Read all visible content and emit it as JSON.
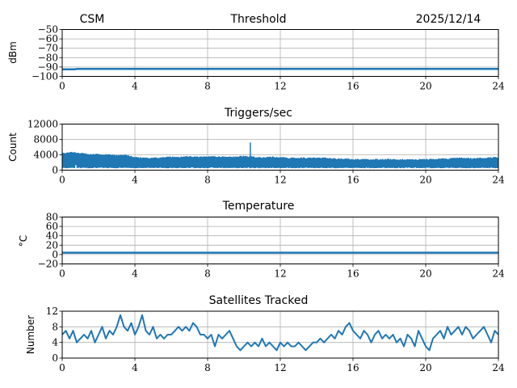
{
  "header": {
    "left": "CSM",
    "center": "Threshold",
    "right": "2025/12/14"
  },
  "series_color": "#1f77b4",
  "grid_color": "#b0b0b0",
  "chart_data": [
    {
      "type": "line",
      "title": "Threshold",
      "ylabel": "dBm",
      "xlim": [
        0,
        24
      ],
      "ylim": [
        -100,
        -50
      ],
      "xticks": [
        0,
        4,
        8,
        12,
        16,
        20,
        24
      ],
      "xtick_labels": [
        "0",
        "4",
        "8",
        "12",
        "16",
        "20",
        "24"
      ],
      "yticks": [
        -100,
        -90,
        -80,
        -70,
        -60,
        -50
      ],
      "ytick_labels": [
        "−100",
        "−90",
        "−80",
        "−70",
        "−60",
        "−50"
      ],
      "grid": true,
      "x": [
        0,
        0.7,
        0.8,
        24
      ],
      "y": [
        -92.5,
        -92.5,
        -92,
        -92
      ]
    },
    {
      "type": "area",
      "title": "Triggers/sec",
      "ylabel": "Count",
      "xlim": [
        0,
        24
      ],
      "ylim": [
        0,
        12000
      ],
      "xticks": [
        0,
        4,
        8,
        12,
        16,
        20,
        24
      ],
      "xtick_labels": [
        "0",
        "4",
        "8",
        "12",
        "16",
        "20",
        "24"
      ],
      "yticks": [
        0,
        4000,
        8000,
        12000
      ],
      "ytick_labels": [
        "0",
        "4000",
        "8000",
        "12000"
      ],
      "grid": true,
      "x_step": 0.5,
      "upper": [
        4500,
        4800,
        4600,
        4200,
        4300,
        4200,
        4000,
        4100,
        3500,
        3300,
        3300,
        3400,
        3600,
        3600,
        3700,
        3600,
        3700,
        3700,
        3600,
        3600,
        3800,
        3600,
        3400,
        3600,
        3500,
        3300,
        3400,
        3300,
        3300,
        3300,
        3100,
        3100,
        3000,
        3000,
        2900,
        3000,
        3000,
        2900,
        2900,
        2900,
        3000,
        3000,
        3100,
        3200,
        3300,
        3200,
        3300,
        3400,
        3500
      ],
      "lower": 500,
      "spikes": [
        {
          "x": 10.35,
          "y": 7200
        },
        {
          "x": 0.75,
          "y": 1300
        }
      ]
    },
    {
      "type": "line",
      "title": "Temperature",
      "ylabel": "°C",
      "xlim": [
        0,
        24
      ],
      "ylim": [
        -20,
        80
      ],
      "xticks": [
        0,
        4,
        8,
        12,
        16,
        20,
        24
      ],
      "xtick_labels": [
        "0",
        "4",
        "8",
        "12",
        "16",
        "20",
        "24"
      ],
      "yticks": [
        -20,
        0,
        20,
        40,
        60,
        80
      ],
      "ytick_labels": [
        "−20",
        "0",
        "20",
        "40",
        "60",
        "80"
      ],
      "grid": true,
      "x": [
        0,
        24
      ],
      "y": [
        4,
        4
      ]
    },
    {
      "type": "line",
      "title": "Satellites Tracked",
      "ylabel": "Number",
      "xlim": [
        0,
        24
      ],
      "ylim": [
        0,
        12
      ],
      "xticks": [
        0,
        4,
        8,
        12,
        16,
        20,
        24
      ],
      "xtick_labels": [
        "0",
        "4",
        "8",
        "12",
        "16",
        "20",
        "24"
      ],
      "yticks": [
        0,
        4,
        8,
        12
      ],
      "ytick_labels": [
        "0",
        "4",
        "8",
        "12"
      ],
      "grid": true,
      "x_step": 0.2,
      "y": [
        6,
        7,
        5,
        7,
        4,
        5,
        6,
        5,
        7,
        4,
        6,
        8,
        5,
        7,
        6,
        8,
        11,
        8,
        7,
        9,
        6,
        8,
        11,
        7,
        6,
        8,
        5,
        6,
        5,
        6,
        6,
        7,
        8,
        7,
        8,
        7,
        9,
        8,
        6,
        6,
        5,
        6,
        3,
        6,
        5,
        6,
        7,
        5,
        3,
        2,
        3,
        4,
        3,
        4,
        3,
        5,
        3,
        4,
        3,
        2,
        4,
        3,
        4,
        3,
        3,
        4,
        3,
        2,
        3,
        4,
        4,
        5,
        4,
        5,
        6,
        5,
        7,
        6,
        8,
        9,
        7,
        6,
        5,
        7,
        6,
        4,
        6,
        7,
        5,
        6,
        5,
        6,
        4,
        5,
        3,
        6,
        5,
        3,
        7,
        5,
        3,
        2,
        5,
        6,
        7,
        5,
        8,
        6,
        7,
        8,
        6,
        8,
        7,
        5,
        6,
        7,
        8,
        6,
        4,
        7,
        6
      ]
    }
  ]
}
